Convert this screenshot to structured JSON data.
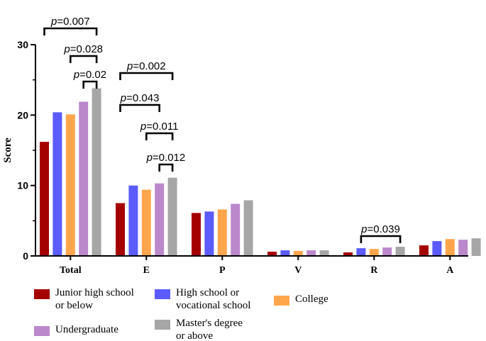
{
  "chart_data": {
    "type": "bar",
    "ylabel": "Score",
    "ylim": [
      0,
      30
    ],
    "yticks": [
      0,
      10,
      20,
      30
    ],
    "categories": [
      "Total",
      "E",
      "P",
      "V",
      "R",
      "A"
    ],
    "series": [
      {
        "name": "Junior high school or below",
        "label_lines": [
          "Junior high school",
          "or below"
        ],
        "color": "#a50000",
        "values": [
          16.2,
          7.5,
          6.1,
          0.6,
          0.5,
          1.5
        ]
      },
      {
        "name": "High school or vocational school",
        "label_lines": [
          "High school or",
          "vocational school"
        ],
        "color": "#5b5bff",
        "values": [
          20.4,
          10.0,
          6.3,
          0.8,
          1.1,
          2.1
        ]
      },
      {
        "name": "College",
        "label_lines": [
          "College"
        ],
        "color": "#ffa64d",
        "values": [
          20.1,
          9.4,
          6.6,
          0.7,
          1.0,
          2.4
        ]
      },
      {
        "name": "Undergraduate",
        "label_lines": [
          "Undergraduate"
        ],
        "color": "#bb88cc",
        "values": [
          21.9,
          10.3,
          7.4,
          0.8,
          1.2,
          2.3
        ]
      },
      {
        "name": "Master's degree or above",
        "label_lines": [
          "Master's degree",
          "or above"
        ],
        "color": "#a6a6a6",
        "values": [
          23.8,
          11.1,
          7.9,
          0.8,
          1.3,
          2.5
        ]
      }
    ],
    "annotations": [
      {
        "category": "Total",
        "from_series": 0,
        "to_series": 4,
        "prefix": "p",
        "text": "=0.007"
      },
      {
        "category": "Total",
        "from_series": 2,
        "to_series": 4,
        "prefix": "p",
        "text": "=0.028"
      },
      {
        "category": "Total",
        "from_series": 3,
        "to_series": 4,
        "prefix": "p",
        "text": "=0.02"
      },
      {
        "category": "E",
        "from_series": 0,
        "to_series": 4,
        "prefix": "p",
        "text": "=0.002"
      },
      {
        "category": "E",
        "from_series": 0,
        "to_series": 3,
        "prefix": "p",
        "text": "=0.043"
      },
      {
        "category": "E",
        "from_series": 2,
        "to_series": 4,
        "prefix": "p",
        "text": "=0.011"
      },
      {
        "category": "E",
        "from_series": 3,
        "to_series": 4,
        "prefix": "p",
        "text": "=0.012"
      },
      {
        "category": "R",
        "from_series": 1,
        "to_series": 4,
        "prefix": "p",
        "text": "=0.039"
      }
    ]
  }
}
